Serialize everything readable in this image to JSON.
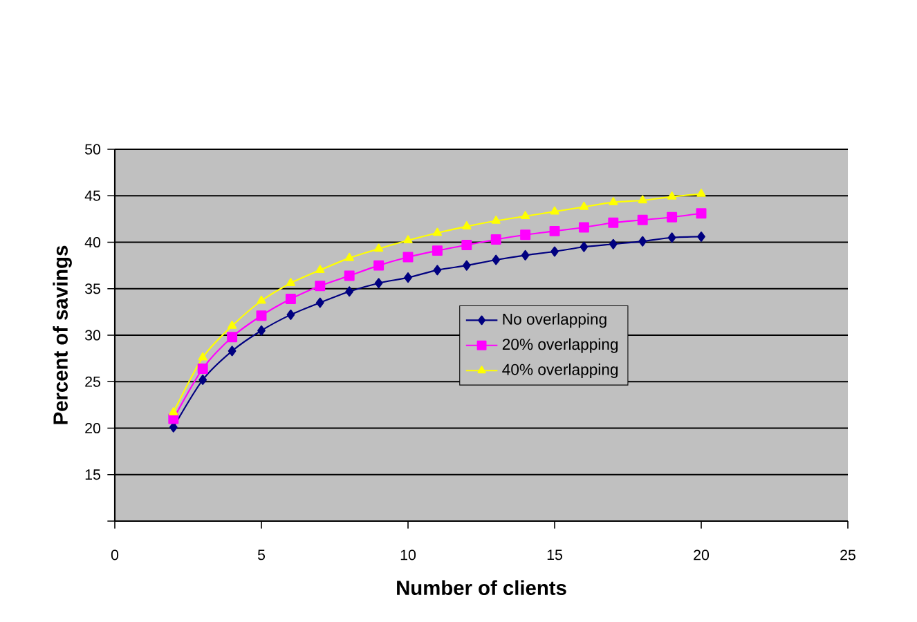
{
  "chart_data": {
    "type": "line",
    "xlabel": "Number of clients",
    "ylabel": "Percent of savings",
    "x": [
      2,
      3,
      4,
      5,
      6,
      7,
      8,
      9,
      10,
      11,
      12,
      13,
      14,
      15,
      16,
      17,
      18,
      19,
      20
    ],
    "series": [
      {
        "name": "No overlapping",
        "color": "#000080",
        "marker": "diamond",
        "values": [
          20.1,
          25.2,
          28.3,
          30.5,
          32.2,
          33.5,
          34.7,
          35.6,
          36.2,
          37.0,
          37.5,
          38.1,
          38.6,
          39.0,
          39.5,
          39.8,
          40.1,
          40.5,
          40.6
        ]
      },
      {
        "name": "20% overlapping",
        "color": "#ff00ff",
        "marker": "square",
        "values": [
          21.0,
          26.4,
          29.8,
          32.1,
          33.9,
          35.3,
          36.4,
          37.5,
          38.4,
          39.1,
          39.7,
          40.3,
          40.8,
          41.2,
          41.6,
          42.1,
          42.4,
          42.7,
          43.1
        ]
      },
      {
        "name": "40% overlapping",
        "color": "#ffff00",
        "marker": "triangle",
        "values": [
          21.7,
          27.6,
          31.0,
          33.7,
          35.6,
          37.0,
          38.3,
          39.3,
          40.2,
          41.0,
          41.7,
          42.3,
          42.8,
          43.3,
          43.8,
          44.3,
          44.5,
          44.9,
          45.2
        ]
      }
    ],
    "xlim": [
      0,
      25
    ],
    "xticks": [
      0,
      5,
      10,
      15,
      20,
      25
    ],
    "ylim": [
      10,
      50
    ],
    "yticks": [
      {
        "value": 10,
        "label": null
      },
      15,
      20,
      25,
      30,
      35,
      40,
      45,
      50
    ],
    "grid": "y",
    "legend": "right"
  }
}
